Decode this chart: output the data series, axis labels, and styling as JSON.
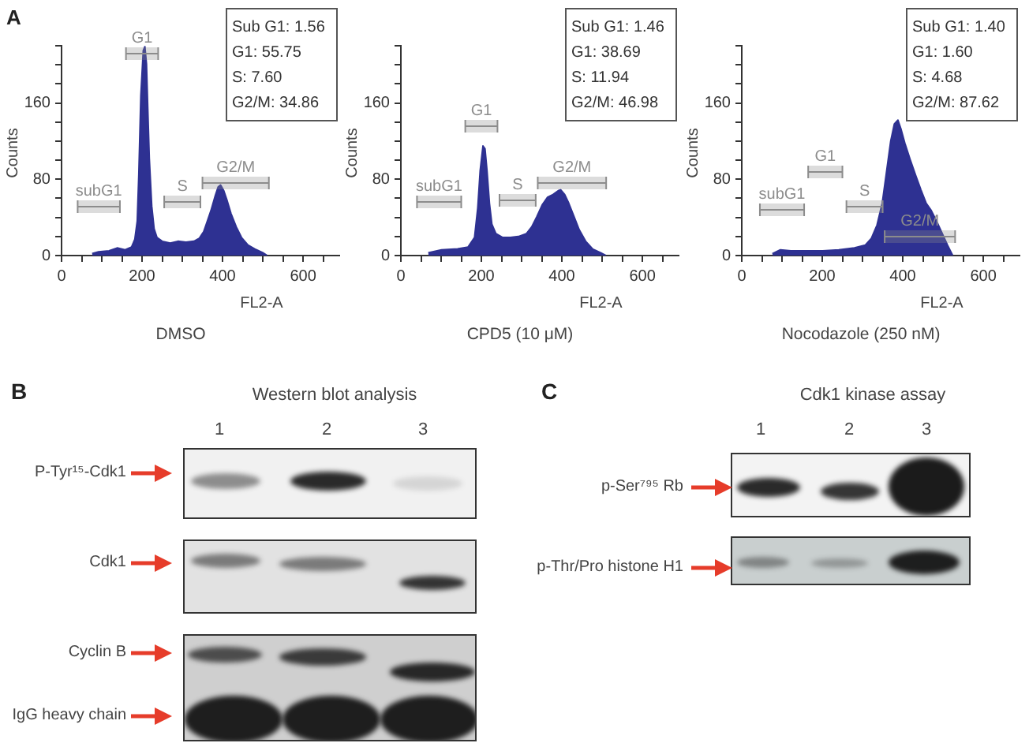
{
  "chart_data": [
    {
      "type": "area",
      "subtitle": "DMSO",
      "xlabel": "FL2-A",
      "ylabel": "Counts",
      "color": "#2e3192",
      "x": [
        76,
        92,
        118,
        138,
        158,
        174,
        182,
        188,
        192,
        197,
        203,
        207,
        211,
        214,
        218,
        224,
        230,
        237,
        250,
        270,
        289,
        309,
        329,
        342,
        353,
        362,
        371,
        382,
        389,
        395,
        403,
        411,
        421,
        434,
        447,
        463,
        480,
        500,
        511
      ],
      "values": [
        2,
        4,
        5,
        8,
        6,
        9,
        17,
        36,
        86,
        168,
        215,
        219,
        201,
        157,
        102,
        52,
        28,
        19,
        15,
        13,
        15,
        14,
        15,
        18,
        25,
        36,
        47,
        63,
        72,
        74,
        68,
        58,
        44,
        30,
        19,
        11,
        7,
        3,
        0
      ],
      "xlim": [
        0,
        690
      ],
      "xticks": [
        0,
        {
          "value": 50,
          "label": null
        },
        {
          "value": 100,
          "label": null
        },
        {
          "value": 150,
          "label": null
        },
        200,
        {
          "value": 250,
          "label": null
        },
        {
          "value": 300,
          "label": null
        },
        {
          "value": 350,
          "label": null
        },
        400,
        {
          "value": 450,
          "label": null
        },
        {
          "value": 500,
          "label": null
        },
        {
          "value": 550,
          "label": null
        },
        600,
        {
          "value": 650,
          "label": null
        }
      ],
      "ylim": [
        0,
        220
      ],
      "yticks": [
        0,
        {
          "value": 20,
          "label": null
        },
        {
          "value": 40,
          "label": null
        },
        {
          "value": 60,
          "label": null
        },
        80,
        {
          "value": 100,
          "label": null
        },
        {
          "value": 120,
          "label": null
        },
        {
          "value": 140,
          "label": null
        },
        160,
        {
          "value": 180,
          "label": null
        },
        {
          "value": 200,
          "label": null
        },
        {
          "value": 220,
          "label": null
        }
      ],
      "bands": [
        {
          "axis": "x",
          "from": 40,
          "to": 145,
          "label": "subG1",
          "color": "#8c8c8c"
        },
        {
          "axis": "x",
          "from": 160,
          "to": 240,
          "label": "G1",
          "color": "#8c8c8c"
        },
        {
          "axis": "x",
          "from": 255,
          "to": 345,
          "label": "S",
          "color": "#8c8c8c"
        },
        {
          "axis": "x",
          "from": 350,
          "to": 515,
          "label": "G2/M",
          "color": "#8c8c8c"
        }
      ],
      "annotations": [
        "A",
        "Sub G1: 1.56",
        "G1: 55.75",
        "S: 7.60",
        "G2/M: 34.86"
      ]
    },
    {
      "type": "area",
      "subtitle": "CPD5 (10 μM)",
      "xlabel": "FL2-A",
      "ylabel": "Counts",
      "color": "#2e3192",
      "x": [
        68,
        101,
        141,
        167,
        183,
        191,
        197,
        204,
        209,
        214,
        220,
        226,
        236,
        253,
        272,
        292,
        312,
        325,
        338,
        351,
        364,
        378,
        391,
        397,
        407,
        417,
        430,
        443,
        459,
        476,
        496,
        509
      ],
      "values": [
        3,
        6,
        7,
        9,
        19,
        50,
        89,
        115,
        112,
        89,
        55,
        33,
        23,
        19,
        19,
        20,
        23,
        30,
        41,
        53,
        61,
        64,
        68,
        69,
        64,
        55,
        41,
        27,
        15,
        7,
        3,
        0
      ],
      "xlim": [
        0,
        690
      ],
      "xticks": [
        0,
        {
          "value": 50,
          "label": null
        },
        {
          "value": 100,
          "label": null
        },
        {
          "value": 150,
          "label": null
        },
        200,
        {
          "value": 250,
          "label": null
        },
        {
          "value": 300,
          "label": null
        },
        {
          "value": 350,
          "label": null
        },
        400,
        {
          "value": 450,
          "label": null
        },
        {
          "value": 500,
          "label": null
        },
        {
          "value": 550,
          "label": null
        },
        600,
        {
          "value": 650,
          "label": null
        }
      ],
      "ylim": [
        0,
        220
      ],
      "yticks": [
        0,
        {
          "value": 20,
          "label": null
        },
        {
          "value": 40,
          "label": null
        },
        {
          "value": 60,
          "label": null
        },
        80,
        {
          "value": 100,
          "label": null
        },
        {
          "value": 120,
          "label": null
        },
        {
          "value": 140,
          "label": null
        },
        160,
        {
          "value": 180,
          "label": null
        },
        {
          "value": 200,
          "label": null
        },
        {
          "value": 220,
          "label": null
        }
      ],
      "bands": [
        {
          "axis": "x",
          "from": 40,
          "to": 150,
          "label": "subG1",
          "color": "#8c8c8c"
        },
        {
          "axis": "x",
          "from": 160,
          "to": 240,
          "label": "G1",
          "color": "#8c8c8c"
        },
        {
          "axis": "x",
          "from": 245,
          "to": 335,
          "label": "S",
          "color": "#8c8c8c"
        },
        {
          "axis": "x",
          "from": 340,
          "to": 510,
          "label": "G2/M",
          "color": "#8c8c8c"
        }
      ],
      "annotations": [
        "Sub G1: 1.46",
        "G1: 38.69",
        "S: 11.94",
        "G2/M: 46.98"
      ]
    },
    {
      "type": "area",
      "subtitle": "Nocodazole (250 nM)",
      "xlabel": "FL2-A",
      "ylabel": "Counts",
      "color": "#2e3192",
      "x": [
        76,
        96,
        122,
        162,
        201,
        241,
        280,
        307,
        322,
        336,
        349,
        359,
        370,
        379,
        388,
        396,
        405,
        418,
        432,
        445,
        458,
        471,
        484,
        497,
        511,
        524
      ],
      "values": [
        2,
        6,
        5,
        5,
        5,
        6,
        8,
        11,
        18,
        32,
        55,
        86,
        120,
        138,
        142,
        132,
        118,
        101,
        84,
        69,
        55,
        47,
        36,
        24,
        11,
        0
      ],
      "xlim": [
        0,
        690
      ],
      "xticks": [
        0,
        {
          "value": 50,
          "label": null
        },
        {
          "value": 100,
          "label": null
        },
        {
          "value": 150,
          "label": null
        },
        200,
        {
          "value": 250,
          "label": null
        },
        {
          "value": 300,
          "label": null
        },
        {
          "value": 350,
          "label": null
        },
        400,
        {
          "value": 450,
          "label": null
        },
        {
          "value": 500,
          "label": null
        },
        {
          "value": 550,
          "label": null
        },
        600,
        {
          "value": 650,
          "label": null
        }
      ],
      "ylim": [
        0,
        220
      ],
      "yticks": [
        0,
        {
          "value": 20,
          "label": null
        },
        {
          "value": 40,
          "label": null
        },
        {
          "value": 60,
          "label": null
        },
        80,
        {
          "value": 100,
          "label": null
        },
        {
          "value": 120,
          "label": null
        },
        {
          "value": 140,
          "label": null
        },
        160,
        {
          "value": 180,
          "label": null
        },
        {
          "value": 200,
          "label": null
        },
        {
          "value": 220,
          "label": null
        }
      ],
      "bands": [
        {
          "axis": "x",
          "from": 45,
          "to": 155,
          "label": "subG1",
          "color": "#8c8c8c"
        },
        {
          "axis": "x",
          "from": 165,
          "to": 250,
          "label": "G1",
          "color": "#8c8c8c"
        },
        {
          "axis": "x",
          "from": 260,
          "to": 350,
          "label": "S",
          "color": "#8c8c8c"
        },
        {
          "axis": "x",
          "from": 355,
          "to": 530,
          "label": "G2/M",
          "color": "#8c8c8c"
        }
      ],
      "annotations": [
        "Sub G1: 1.40",
        "G1: 1.60",
        "S: 4.68",
        "G2/M: 87.62"
      ]
    },
    {
      "type": "other",
      "title": "Western blot analysis",
      "categories": [
        "1",
        "2",
        "3"
      ],
      "annotations": [
        "B",
        "P-Tyr¹⁵-Cdk1",
        "Cdk1",
        "Cyclin B",
        "IgG heavy chain"
      ]
    },
    {
      "type": "other",
      "title": "Cdk1 kinase assay",
      "categories": [
        "1",
        "2",
        "3"
      ],
      "annotations": [
        "C",
        "p-Ser⁷⁹⁵ Rb",
        "p-Thr/Pro histone H1"
      ]
    }
  ]
}
